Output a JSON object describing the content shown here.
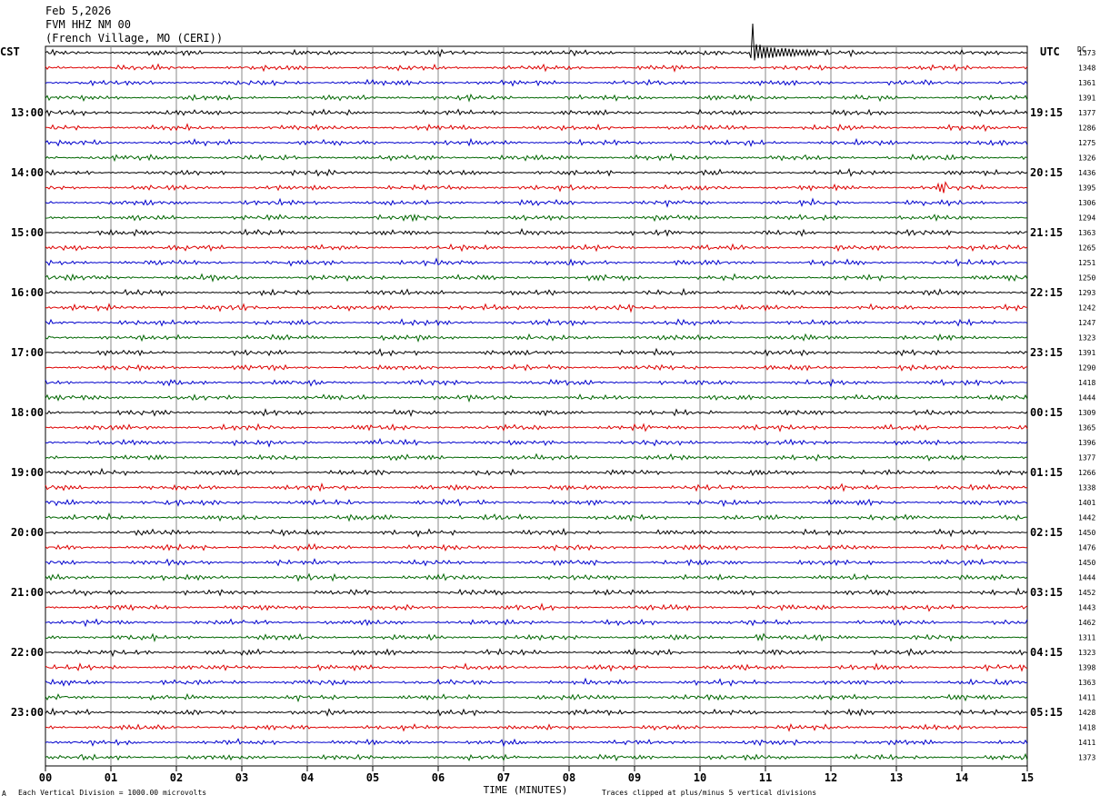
{
  "header": {
    "date": "Feb 5,2026",
    "station": "FVM HHZ NM 00",
    "location": "(French Village, MO (CERI))"
  },
  "left_zone": "CST",
  "right_zone": "UTC",
  "dc_label": "DC",
  "footer": {
    "scale": "Each Vertical Division = 1000.00 microvolts",
    "clip": "Traces clipped at plus/minus 5 vertical divisions",
    "marker": "A"
  },
  "chart_data": {
    "type": "line",
    "xlabel": "TIME (MINUTES)",
    "xlim": [
      0,
      15
    ],
    "x_ticks": [
      "00",
      "01",
      "02",
      "03",
      "04",
      "05",
      "06",
      "07",
      "08",
      "09",
      "10",
      "11",
      "12",
      "13",
      "14",
      "15"
    ],
    "rows_per_hour": 4,
    "row_minutes": 15,
    "trace_colors": [
      "#000000",
      "#dd0000",
      "#0000cc",
      "#006600"
    ],
    "left_hour_labels": [
      "13:00",
      "14:00",
      "15:00",
      "16:00",
      "17:00",
      "18:00",
      "19:00",
      "20:00",
      "21:00",
      "22:00",
      "23:00"
    ],
    "right_hour_labels": [
      "19:15",
      "20:15",
      "21:15",
      "22:15",
      "23:15",
      "00:15",
      "01:15",
      "02:15",
      "03:15",
      "04:15",
      "05:15"
    ],
    "dc_offsets": [
      1373,
      1348,
      1361,
      1391,
      1377,
      1286,
      1275,
      1326,
      1436,
      1395,
      1306,
      1294,
      1363,
      1265,
      1251,
      1250,
      1293,
      1242,
      1247,
      1323,
      1391,
      1290,
      1418,
      1444,
      1309,
      1365,
      1396,
      1377,
      1266,
      1338,
      1401,
      1442,
      1450,
      1476,
      1450,
      1444,
      1452,
      1443,
      1462,
      1311,
      1323,
      1398,
      1363,
      1411,
      1428,
      1418,
      1411,
      1373
    ],
    "events": [
      {
        "row": 0,
        "minute": 10.78,
        "amplitude": "clipped",
        "duration_min": 1.0
      },
      {
        "row": 9,
        "minute": 13.65,
        "amplitude": "medium",
        "duration_min": 0.1
      },
      {
        "row": 11,
        "minute": 5.6,
        "amplitude": "small",
        "duration_min": 0.1
      },
      {
        "row": 39,
        "minute": 10.88,
        "amplitude": "small",
        "duration_min": 0.1
      }
    ]
  }
}
